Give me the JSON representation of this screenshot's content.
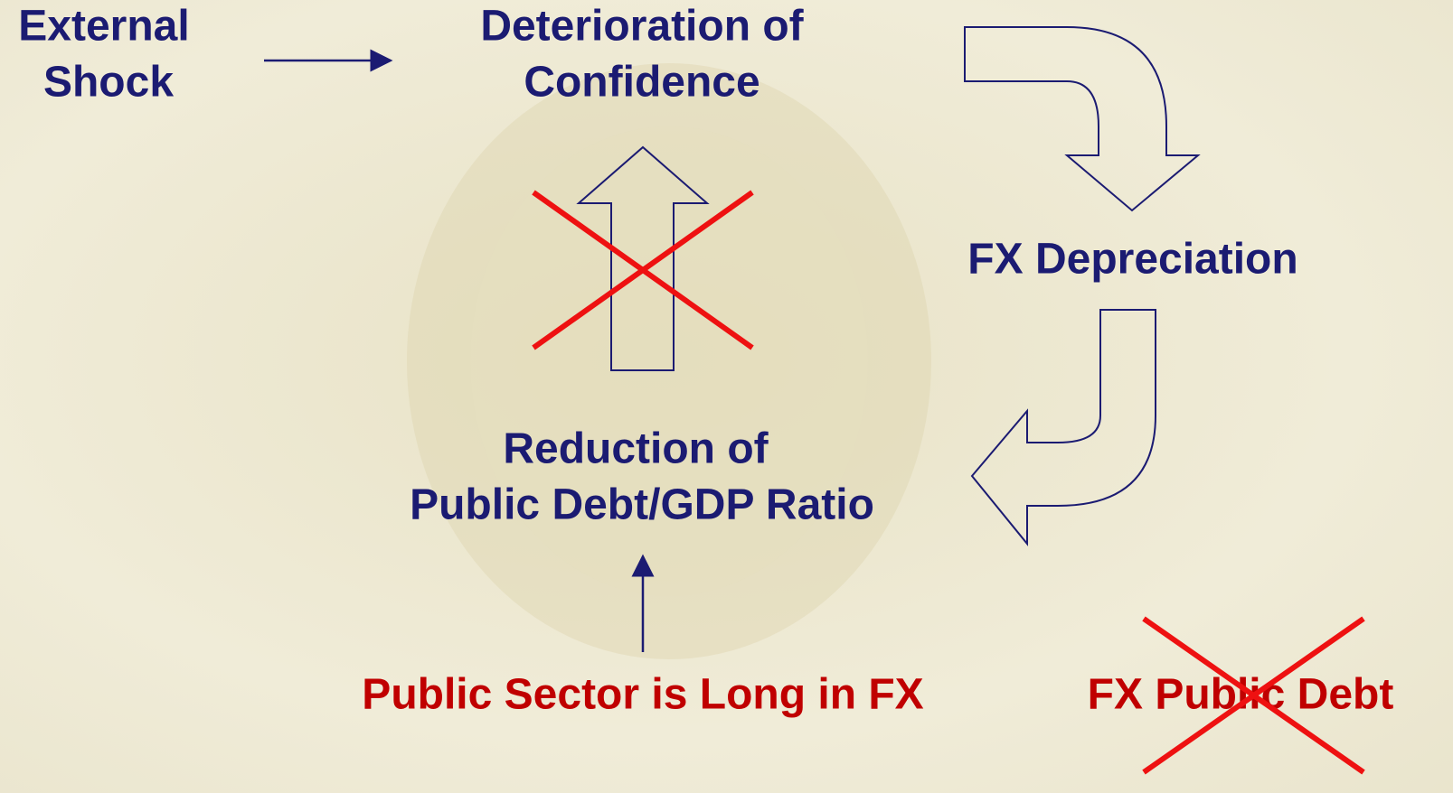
{
  "nodes": [
    {
      "label": [
        "External",
        "Shock"
      ]
    },
    {
      "label": [
        "Deterioration of",
        "Confidence"
      ]
    },
    {
      "label": [
        "FX Depreciation"
      ]
    },
    {
      "label": [
        "Reduction of",
        "Public Debt/GDP Ratio"
      ]
    },
    {
      "label": [
        "Public Sector is Long in FX"
      ]
    },
    {
      "label": [
        "FX Public Debt"
      ]
    }
  ]
}
